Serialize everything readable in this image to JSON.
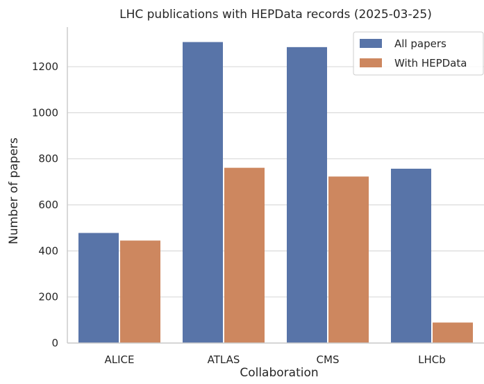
{
  "chart_data": {
    "type": "bar",
    "title": "LHC publications with HEPData records (2025-03-25)",
    "xlabel": "Collaboration",
    "ylabel": "Number of papers",
    "categories": [
      "ALICE",
      "ATLAS",
      "CMS",
      "LHCb"
    ],
    "series": [
      {
        "name": "All papers",
        "color": "#5874a8",
        "values": [
          478,
          1307,
          1285,
          757
        ]
      },
      {
        "name": "With HEPData",
        "color": "#cd875f",
        "values": [
          445,
          761,
          723,
          89
        ]
      }
    ],
    "ylim": [
      0,
      1372
    ],
    "yticks": [
      0,
      200,
      400,
      600,
      800,
      1000,
      1200
    ],
    "grid": "horizontal",
    "legend_position": "top-right"
  }
}
